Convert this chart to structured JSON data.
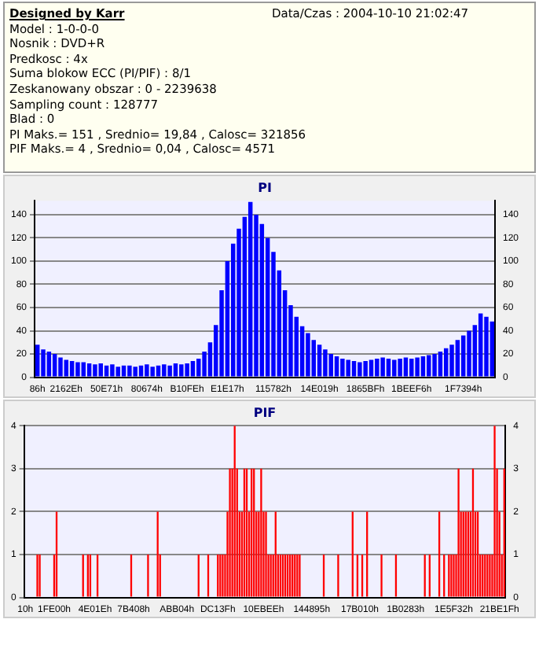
{
  "chart_data": [
    {
      "type": "bar",
      "title": "PI",
      "annotations": [
        "Designed by Karr",
        "Data/Czas : 2004-10-10 21:02:47",
        "Model : 1-0-0-0",
        "Nosnik : DVD+R",
        "Predkosc : 4x",
        "Suma blokow ECC (PI/PIF) : 8/1",
        "Zeskanowany obszar : 0 - 2239638",
        "Sampling count : 128777",
        "Blad : 0",
        "PI Maks.= 151 , Srednio= 19,84 , Calosc= 321856",
        "PIF Maks.= 4 , Srednio= 0,04 , Calosc= 4571"
      ],
      "categories": [
        "86h",
        null,
        null,
        null,
        null,
        "2162Eh",
        null,
        null,
        null,
        null,
        null,
        null,
        "50E71h",
        null,
        null,
        null,
        null,
        null,
        null,
        "80674h",
        null,
        null,
        null,
        null,
        null,
        null,
        "B10FEh",
        null,
        null,
        null,
        null,
        null,
        null,
        "E1E17h",
        null,
        null,
        null,
        null,
        null,
        null,
        null,
        "115782h",
        null,
        null,
        null,
        null,
        null,
        null,
        null,
        "14E019h",
        null,
        null,
        null,
        null,
        null,
        null,
        null,
        "1865BFh",
        null,
        null,
        null,
        null,
        null,
        null,
        null,
        "1BEEF6h",
        null,
        null,
        null,
        null,
        null,
        null,
        null,
        null,
        "1F7394h",
        null,
        null,
        null,
        null,
        null
      ],
      "values": [
        28,
        24,
        22,
        20,
        17,
        15,
        14,
        13,
        13,
        12,
        11,
        12,
        10,
        11,
        9,
        10,
        10,
        9,
        10,
        11,
        9,
        10,
        11,
        10,
        12,
        11,
        12,
        14,
        16,
        22,
        30,
        45,
        75,
        100,
        115,
        128,
        138,
        151,
        140,
        132,
        120,
        108,
        92,
        75,
        62,
        52,
        44,
        38,
        32,
        28,
        24,
        20,
        18,
        16,
        15,
        14,
        13,
        14,
        15,
        16,
        17,
        16,
        15,
        16,
        17,
        16,
        17,
        18,
        19,
        20,
        22,
        25,
        28,
        32,
        36,
        40,
        45,
        55,
        52,
        48
      ],
      "color": "#0000ff",
      "ylim": [
        0,
        152
      ],
      "yticks": [
        0,
        20,
        40,
        60,
        80,
        100,
        120,
        140
      ],
      "y2lim": [
        0,
        152
      ],
      "y2ticks": [
        0,
        20,
        40,
        60,
        80,
        100,
        120,
        140
      ],
      "grid": "y"
    },
    {
      "type": "bar",
      "title": "PIF",
      "categories": [
        "10h",
        null,
        null,
        null,
        null,
        null,
        null,
        null,
        null,
        null,
        null,
        null,
        "1FE00h",
        null,
        null,
        null,
        null,
        null,
        null,
        null,
        null,
        null,
        null,
        null,
        null,
        null,
        null,
        null,
        null,
        "4E01Eh",
        null,
        null,
        null,
        null,
        null,
        null,
        null,
        null,
        null,
        null,
        null,
        null,
        null,
        null,
        null,
        "7B408h",
        null,
        null,
        null,
        null,
        null,
        null,
        null,
        null,
        null,
        null,
        null,
        null,
        null,
        null,
        null,
        null,
        null,
        "ABB04h",
        null,
        null,
        null,
        null,
        null,
        null,
        null,
        null,
        null,
        null,
        null,
        null,
        null,
        null,
        null,
        null,
        "DC13Fh",
        null,
        null,
        null,
        null,
        null,
        null,
        null,
        null,
        null,
        null,
        null,
        null,
        null,
        null,
        null,
        null,
        null,
        null,
        "10EBEEh",
        null,
        null,
        null,
        null,
        null,
        null,
        null,
        null,
        null,
        null,
        null,
        null,
        null,
        null,
        null,
        null,
        null,
        null,
        null,
        "144895h",
        null,
        null,
        null,
        null,
        null,
        null,
        null,
        null,
        null,
        null,
        null,
        null,
        null,
        null,
        null,
        null,
        null,
        null,
        null,
        "17B010h",
        null,
        null,
        null,
        null,
        null,
        null,
        null,
        null,
        null,
        null,
        null,
        null,
        null,
        null,
        null,
        null,
        null,
        null,
        "1B0283h",
        null,
        null,
        null,
        null,
        null,
        null,
        null,
        null,
        null,
        null,
        null,
        null,
        null,
        null,
        null,
        null,
        null,
        null,
        null,
        "1E5F32h",
        null,
        null,
        null,
        null,
        null,
        null,
        null,
        null,
        null,
        null,
        null,
        null,
        null,
        null,
        null,
        null,
        null,
        null,
        "21BE1Fh",
        null,
        null
      ],
      "values": [
        0,
        0,
        0,
        0,
        0,
        1,
        1,
        0,
        0,
        0,
        0,
        0,
        1,
        2,
        0,
        0,
        0,
        0,
        0,
        0,
        0,
        0,
        0,
        0,
        1,
        0,
        1,
        1,
        0,
        0,
        1,
        0,
        0,
        0,
        0,
        0,
        0,
        0,
        0,
        0,
        0,
        0,
        0,
        0,
        1,
        0,
        0,
        0,
        0,
        0,
        0,
        1,
        0,
        0,
        0,
        2,
        1,
        0,
        0,
        0,
        0,
        0,
        0,
        0,
        0,
        0,
        0,
        0,
        0,
        0,
        0,
        0,
        1,
        0,
        0,
        0,
        1,
        0,
        0,
        0,
        1,
        1,
        1,
        1,
        2,
        3,
        3,
        4,
        3,
        2,
        2,
        3,
        3,
        2,
        3,
        3,
        2,
        2,
        3,
        2,
        2,
        1,
        1,
        1,
        2,
        1,
        1,
        1,
        1,
        1,
        1,
        1,
        1,
        1,
        1,
        0,
        0,
        0,
        0,
        0,
        0,
        0,
        0,
        0,
        1,
        0,
        0,
        0,
        0,
        0,
        1,
        0,
        0,
        0,
        0,
        0,
        2,
        0,
        1,
        0,
        1,
        0,
        2,
        0,
        0,
        0,
        0,
        0,
        1,
        0,
        0,
        0,
        0,
        0,
        1,
        0,
        0,
        0,
        0,
        0,
        0,
        0,
        0,
        0,
        0,
        0,
        1,
        0,
        1,
        0,
        0,
        0,
        2,
        0,
        1,
        0,
        1,
        1,
        1,
        1,
        3,
        2,
        2,
        2,
        2,
        2,
        3,
        2,
        2,
        1,
        1,
        1,
        1,
        1,
        1,
        4,
        3,
        2,
        1,
        3
      ],
      "color": "#ff0000",
      "ylim": [
        0,
        4
      ],
      "yticks": [
        0,
        1,
        2,
        3,
        4
      ],
      "y2lim": [
        0,
        4
      ],
      "y2ticks": [
        0,
        1,
        2,
        3,
        4
      ],
      "grid": "y"
    }
  ]
}
